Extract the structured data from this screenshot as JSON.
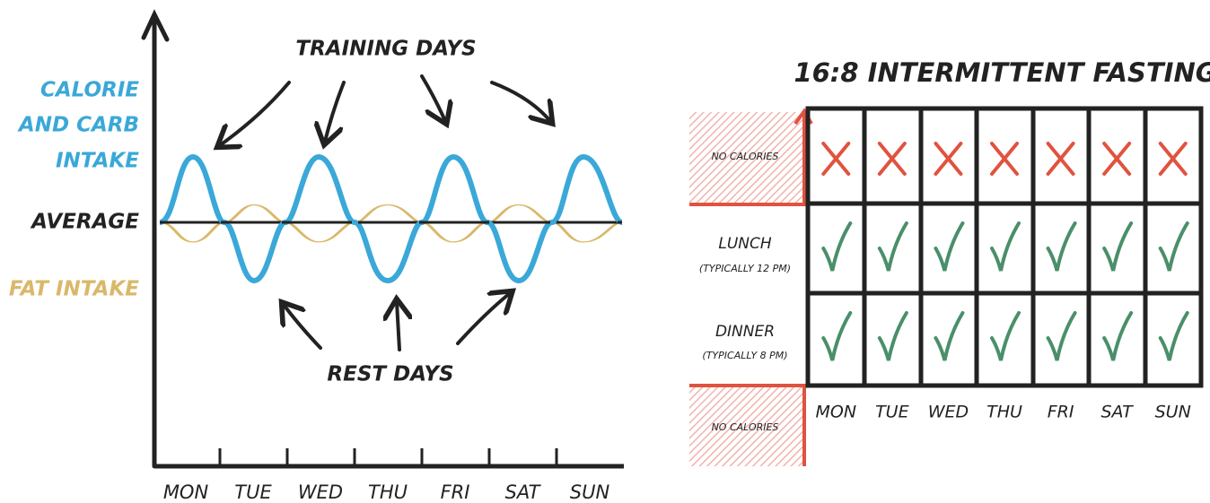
{
  "left": {
    "intake_label": [
      "CALORIE",
      "AND CARB",
      "INTAKE"
    ],
    "average_label": "AVERAGE",
    "fat_label": "FAT INTAKE",
    "training_label": "TRAINING DAYS",
    "rest_label": "REST DAYS",
    "days": [
      "MON",
      "TUE",
      "WED",
      "THU",
      "FRI",
      "SAT",
      "SUN"
    ]
  },
  "right": {
    "title": "16:8 INTERMITTENT FASTING",
    "no_calories_top": "NO CALORIES",
    "rows": [
      {
        "label": "LUNCH",
        "note": "(TYPICALLY 12 PM)"
      },
      {
        "label": "DINNER",
        "note": "(TYPICALLY 8 PM)"
      }
    ],
    "no_calories_bottom": "NO CALORIES",
    "days": [
      "MON",
      "TUE",
      "WED",
      "THU",
      "FRI",
      "SAT",
      "SUN"
    ]
  }
}
